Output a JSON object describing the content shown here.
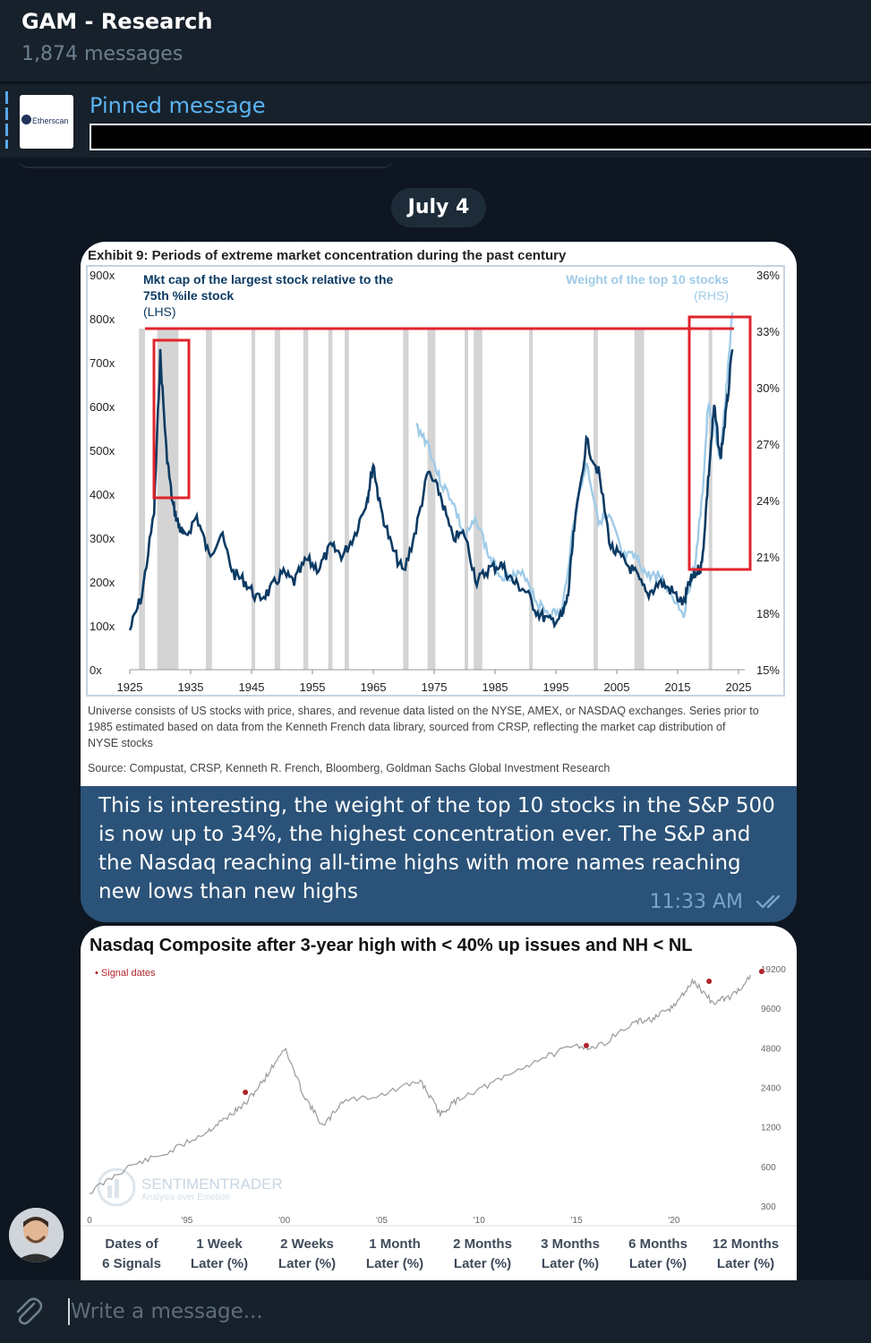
{
  "chat": {
    "title": "GAM - Research",
    "subtitle": "1,874 messages"
  },
  "pinned": {
    "label": "Pinned message",
    "thumb_text": "Etherscan"
  },
  "date_separator": "July 4",
  "message1": {
    "text": "This is interesting, the weight of the top 10 stocks in the S&P 500 is now up to 34%, the highest concentration ever. The S&P and the Nasdaq reaching all-time highs with more names reaching new lows than new highs",
    "time": "11:33 AM",
    "status_icon": "double-check-icon"
  },
  "chart1": {
    "title": "Exhibit 9: Periods of extreme market concentration during the past century",
    "lhs_label_line1": "Mkt cap of the largest stock relative to the",
    "lhs_label_line2": "75th %ile stock",
    "lhs_label_line3": "(LHS)",
    "rhs_label_line1": "Weight of the top 10 stocks",
    "rhs_label_line2": "(RHS)",
    "y_left_ticks": [
      "900x",
      "800x",
      "700x",
      "600x",
      "500x",
      "400x",
      "300x",
      "200x",
      "100x",
      "0x"
    ],
    "y_right_ticks": [
      "36%",
      "33%",
      "30%",
      "27%",
      "24%",
      "21%",
      "18%",
      "15%"
    ],
    "x_ticks": [
      "1925",
      "1935",
      "1945",
      "1955",
      "1965",
      "1975",
      "1985",
      "1995",
      "2005",
      "2015",
      "2025"
    ],
    "note_line1": "Universe consists of US stocks with price, shares, and revenue data listed on the NYSE, AMEX, or NASDAQ exchanges. Series prior to",
    "note_line2": "1985 estimated based on data from the Kenneth French data library, sourced from CRSP, reflecting the market cap distribution of",
    "note_line3": "NYSE stocks",
    "source": "Source: Compustat, CRSP, Kenneth R. French, Bloomberg, Goldman Sachs Global Investment Research",
    "colors": {
      "lhs": "#0b3a63",
      "rhs": "#9fcbe8",
      "highlight": "#e0242c",
      "recession": "#d4d4d4"
    }
  },
  "chart2": {
    "title": "Nasdaq Composite after 3-year high with < 40% up issues and NH < NL",
    "legend": "• Signal dates",
    "y_ticks": [
      "19200",
      "9600",
      "4800",
      "2400",
      "1200",
      "600",
      "300"
    ],
    "x_ticks": [
      "0",
      "'95",
      "'00",
      "'05",
      "'10",
      "'15",
      "'20"
    ],
    "watermark_line1": "SENTIMENTRADER",
    "watermark_line2": "Analysis over Emotion",
    "table_headers": [
      [
        "Dates of",
        "6 Signals"
      ],
      [
        "1 Week",
        "Later (%)"
      ],
      [
        "2 Weeks",
        "Later (%)"
      ],
      [
        "1 Month",
        "Later (%)"
      ],
      [
        "2 Months",
        "Later (%)"
      ],
      [
        "3 Months",
        "Later (%)"
      ],
      [
        "6 Months",
        "Later (%)"
      ],
      [
        "12 Months",
        "Later (%)"
      ]
    ]
  },
  "input": {
    "placeholder": "Write a message..."
  },
  "chart_data": [
    {
      "type": "line",
      "title": "Exhibit 9: Periods of extreme market concentration during the past century",
      "x_range": [
        1925,
        2025
      ],
      "ylim_left": [
        0,
        900
      ],
      "ylim_right": [
        15,
        36
      ],
      "series": [
        {
          "name": "Mkt cap of the largest stock relative to the 75th %ile stock (LHS)",
          "axis": "left",
          "x": [
            1925,
            1927,
            1929,
            1930,
            1931,
            1932,
            1933,
            1934,
            1936,
            1938,
            1940,
            1942,
            1944,
            1946,
            1948,
            1950,
            1952,
            1954,
            1956,
            1958,
            1960,
            1962,
            1964,
            1965,
            1966,
            1968,
            1970,
            1972,
            1974,
            1976,
            1978,
            1980,
            1982,
            1984,
            1986,
            1988,
            1990,
            1992,
            1994,
            1996,
            1997,
            1998,
            2000,
            2002,
            2004,
            2006,
            2008,
            2010,
            2012,
            2014,
            2016,
            2017,
            2018,
            2019,
            2020,
            2021,
            2022,
            2023,
            2024
          ],
          "values": [
            90,
            170,
            360,
            720,
            500,
            380,
            330,
            300,
            350,
            260,
            310,
            220,
            200,
            160,
            180,
            220,
            200,
            250,
            230,
            280,
            260,
            310,
            390,
            470,
            380,
            280,
            220,
            320,
            450,
            400,
            300,
            310,
            200,
            230,
            240,
            200,
            180,
            130,
            110,
            120,
            170,
            320,
            520,
            450,
            280,
            250,
            220,
            170,
            200,
            180,
            150,
            200,
            220,
            240,
            430,
            600,
            480,
            590,
            730
          ]
        },
        {
          "name": "Weight of the top 10 stocks (RHS)",
          "axis": "right",
          "x": [
            1972,
            1974,
            1976,
            1978,
            1980,
            1982,
            1984,
            1986,
            1988,
            1990,
            1992,
            1994,
            1996,
            1998,
            2000,
            2002,
            2004,
            2006,
            2008,
            2010,
            2012,
            2014,
            2016,
            2018,
            2019,
            2020,
            2021,
            2022,
            2023,
            2024
          ],
          "values": [
            28,
            27,
            25,
            24,
            22,
            23,
            21,
            20,
            20,
            20,
            18.5,
            18,
            18,
            23,
            26,
            23,
            23,
            21,
            21,
            20,
            20,
            19,
            18,
            21,
            24,
            29,
            28,
            26,
            30,
            34
          ]
        }
      ]
    },
    {
      "type": "line",
      "title": "Nasdaq Composite after 3-year high with < 40% up issues and NH < NL",
      "log_scale": true,
      "x_range": [
        1990,
        2024
      ],
      "ylim": [
        300,
        19200
      ],
      "series": [
        {
          "name": "Nasdaq Composite",
          "x": [
            1990,
            1992,
            1994,
            1996,
            1997,
            1998,
            1999,
            2000,
            2001,
            2002,
            2003,
            2005,
            2007,
            2008,
            2009,
            2011,
            2013,
            2015,
            2016,
            2018,
            2019,
            2020,
            2021,
            2022,
            2023,
            2024
          ],
          "values": [
            380,
            600,
            760,
            1100,
            1400,
            1800,
            2800,
            4800,
            2100,
            1200,
            1900,
            2100,
            2700,
            1500,
            2000,
            2700,
            3900,
            5000,
            4800,
            7500,
            8000,
            10000,
            15500,
            10500,
            12000,
            17000
          ]
        },
        {
          "name": "Signal dates",
          "x": [
            1998,
            2015.5,
            2021.8,
            2024.5
          ],
          "values": [
            2200,
            5000,
            15400,
            18300
          ]
        }
      ]
    }
  ]
}
